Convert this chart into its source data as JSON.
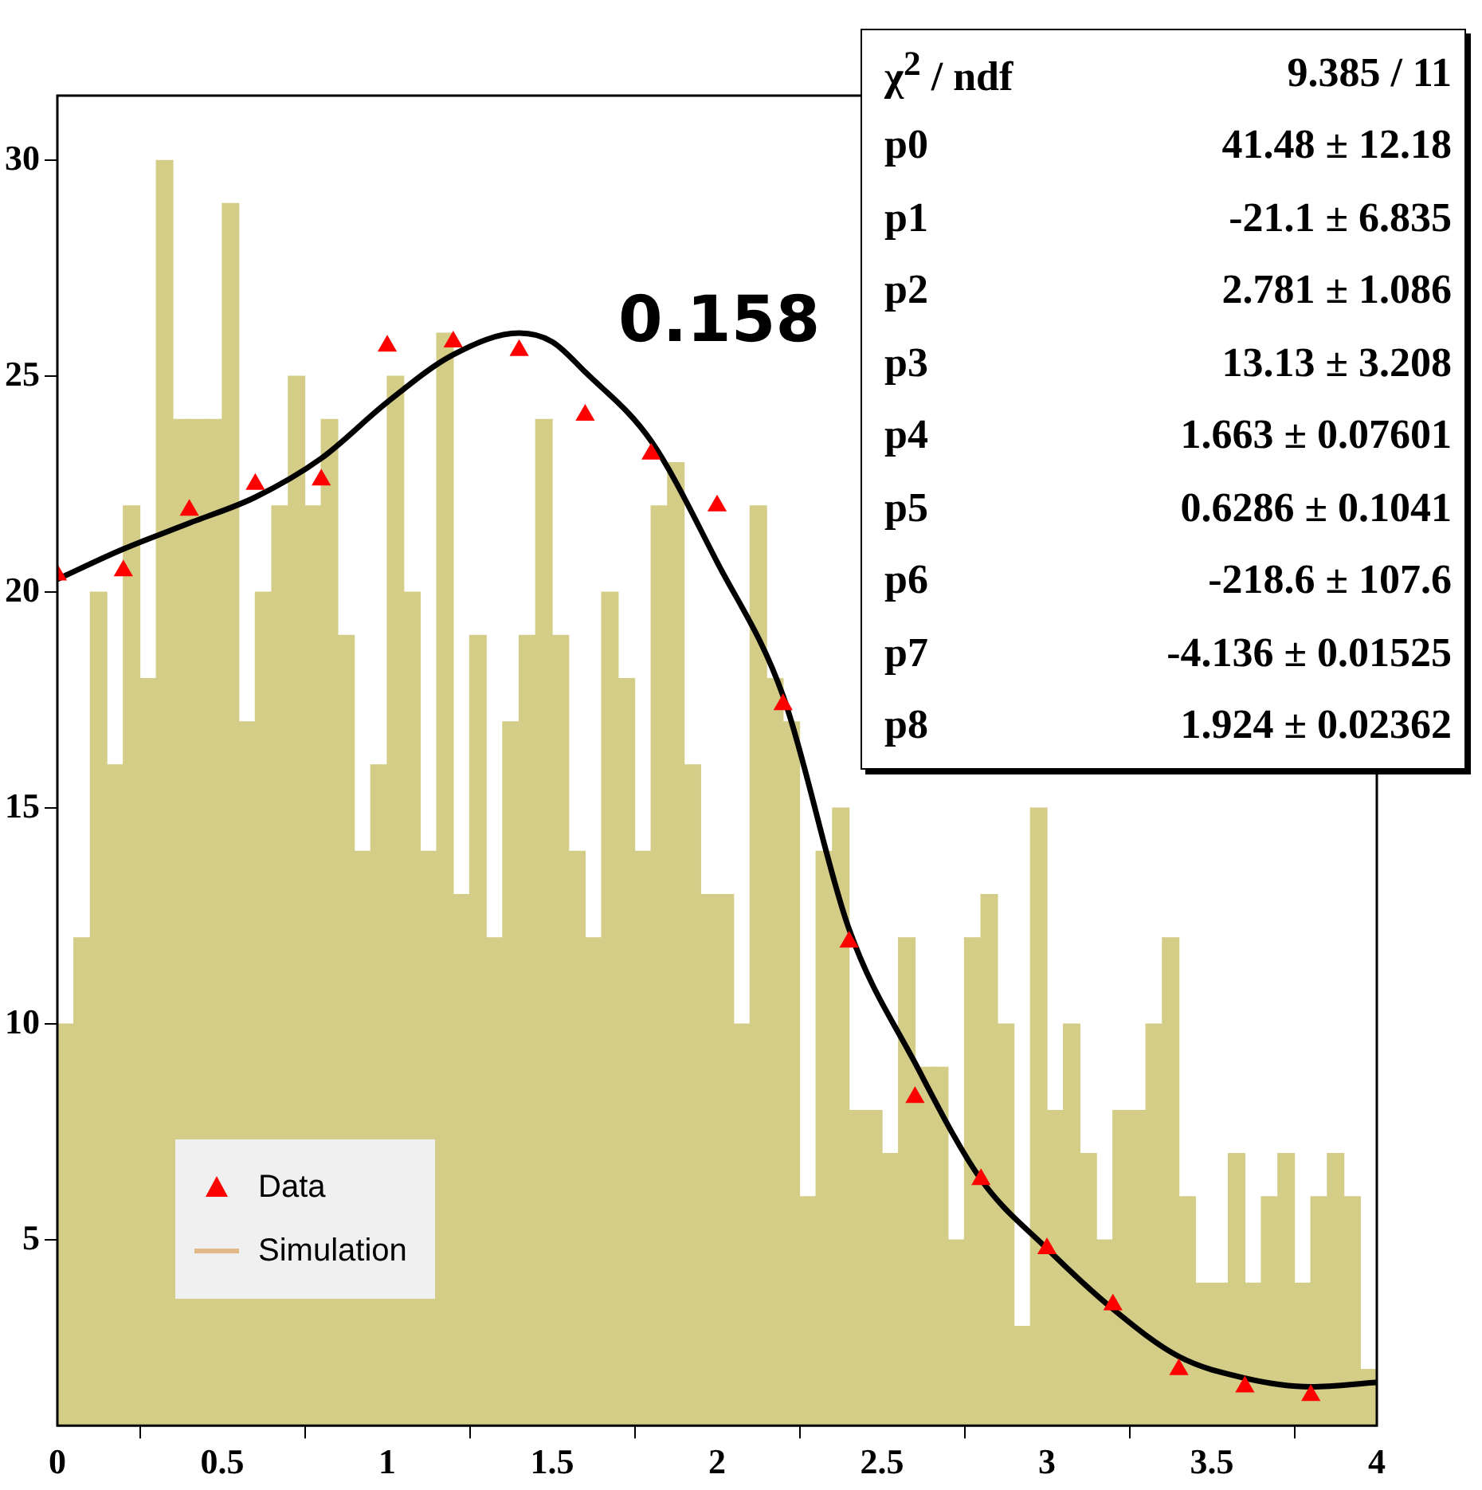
{
  "chart_data": {
    "type": "histogram",
    "bins": [
      0,
      0.05,
      0.1,
      0.15,
      0.2,
      0.25,
      0.3,
      0.35,
      0.4,
      0.45,
      0.5,
      0.55,
      0.6,
      0.65,
      0.7,
      0.75,
      0.8,
      0.85,
      0.9,
      0.95,
      1,
      1.05,
      1.1,
      1.15,
      1.2,
      1.25,
      1.3,
      1.35,
      1.4,
      1.45,
      1.5,
      1.55,
      1.6,
      1.65,
      1.7,
      1.75,
      1.8,
      1.85,
      1.9,
      1.95,
      2,
      2.05,
      2.1,
      2.15,
      2.2,
      2.25,
      2.3,
      2.35,
      2.4,
      2.45,
      2.5,
      2.55,
      2.6,
      2.65,
      2.7,
      2.75,
      2.8,
      2.85,
      2.9,
      2.95,
      3,
      3.05,
      3.1,
      3.15,
      3.2,
      3.25,
      3.3,
      3.35,
      3.4,
      3.45,
      3.5,
      3.55,
      3.6,
      3.65,
      3.7,
      3.75,
      3.8,
      3.85,
      3.9,
      3.95,
      4
    ],
    "series": [
      {
        "name": "Data",
        "type": "scatter",
        "color": "#ff0000",
        "marker": "triangle",
        "x": [
          0,
          0.2,
          0.4,
          0.6,
          0.8,
          1,
          1.2,
          1.4,
          1.6,
          1.8,
          2,
          2.2,
          2.4,
          2.6,
          2.8,
          3,
          3.2,
          3.4,
          3.6,
          3.8
        ],
        "values": [
          20.4,
          20.5,
          21.9,
          22.5,
          22.6,
          25.7,
          25.8,
          25.6,
          24.1,
          23.2,
          22,
          17.4,
          11.9,
          8.3,
          6.4,
          4.8,
          3.5,
          2,
          1.6,
          1.4
        ]
      },
      {
        "name": "Simulation",
        "type": "histogram",
        "color": "#d4cd88",
        "values": [
          10,
          12,
          20,
          16,
          22,
          18,
          30,
          24,
          24,
          24,
          29,
          17,
          20,
          22,
          25,
          22,
          24,
          19,
          14,
          16,
          25,
          20,
          14,
          26,
          13,
          19,
          12,
          17,
          19,
          24,
          19,
          14,
          12,
          20,
          18,
          14,
          22,
          23,
          16,
          13,
          13,
          10,
          22,
          18,
          17,
          6,
          14,
          15,
          8,
          8,
          7,
          12,
          9,
          9,
          5,
          12,
          13,
          10,
          3,
          15,
          8,
          10,
          7,
          5,
          8,
          8,
          10,
          12,
          6,
          4,
          4,
          7,
          4,
          6,
          7,
          4,
          6,
          7,
          6,
          2
        ]
      },
      {
        "type": "line",
        "color": "#000000",
        "x": [
          0,
          0.2,
          0.4,
          0.6,
          0.8,
          1,
          1.2,
          1.4,
          1.5,
          1.6,
          1.8,
          2,
          2.2,
          2.4,
          2.6,
          2.8,
          3,
          3.2,
          3.4,
          3.6,
          3.8,
          4
        ],
        "values": [
          20.3,
          21,
          21.6,
          22.2,
          23.1,
          24.4,
          25.5,
          26,
          25.8,
          25.1,
          23.5,
          20.7,
          17.6,
          12.2,
          9.1,
          6.4,
          4.8,
          3.4,
          2.3,
          1.8,
          1.6,
          1.7
        ]
      }
    ],
    "xlim": [
      0,
      4
    ],
    "xticks": [
      0,
      0.5,
      1,
      1.5,
      2,
      2.5,
      3,
      3.5,
      4
    ],
    "ylim": [
      0.7,
      31.5
    ],
    "yticks": [
      5,
      10,
      15,
      20,
      25,
      30
    ],
    "legend": "bottom left",
    "annotations": [
      "0.158",
      "χ$^{2}$ / ndf",
      "9.385 / 11",
      "p0",
      "41.48 ± 12.18",
      "p1",
      "-21.1 ± 6.835",
      "p2",
      "2.781 ± 1.086",
      "p3",
      "13.13 ± 3.208",
      "p4",
      "1.663 ± 0.07601",
      "p5",
      "0.6286 ± 0.1041",
      "p6",
      "-218.6 ± 107.6",
      "p7",
      "-4.136 ± 0.01525",
      "p8",
      "1.924 ± 0.02362"
    ]
  }
}
